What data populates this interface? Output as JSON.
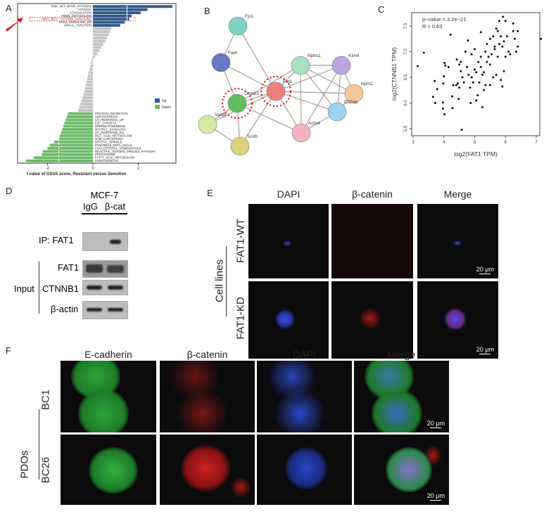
{
  "panels": {
    "a": "A",
    "b": "B",
    "c": "C",
    "d": "D",
    "e": "E",
    "f": "F"
  },
  "chart_data": [
    {
      "type": "bar",
      "orientation": "horizontal",
      "xlabel": "t value of GSVA score, Resistant versus Sensitive",
      "xticks": [
        "-2",
        "0",
        "2"
      ],
      "xlim": [
        -3.3,
        3.8
      ],
      "legend": {
        "position": "right",
        "entries": [
          {
            "name": "Up",
            "color": "#2f5a8a"
          },
          {
            "name": "Down",
            "color": "#6dbb6a"
          }
        ]
      },
      "up": {
        "labels": [
          "PI3K_AKT_MTOR_PATHWAY",
          "HYPOXIA",
          "COAGULATION",
          "HEME_METABOLISM",
          "WNT_BETA_CATENIN_SIGNALING",
          "KRAS_SIGNALING_DN",
          "APICAL_JUNCTION"
        ],
        "values": [
          3.5,
          2.4,
          2.1,
          1.7,
          1.6,
          1.4,
          1.2
        ],
        "highlighted": "WNT_BETA_CATENIN_SIGNALING"
      },
      "not_significant": {
        "values": [
          0.8,
          0.75,
          0.7,
          0.62,
          0.55,
          0.45,
          0.38,
          0.3,
          0.2,
          0.1,
          -0.05,
          -0.08,
          -0.12,
          -0.15,
          -0.2,
          -0.22,
          -0.25,
          -0.28,
          -0.32,
          -0.35,
          -0.38,
          -0.42,
          -0.45,
          -0.5,
          -0.55,
          -0.6,
          -0.65
        ]
      },
      "down": {
        "labels": [
          "PROTEIN_SECRETION",
          "ADIPOGENESIS",
          "UV_RESPONSE_UP",
          "E2F_TARGETS",
          "SPERMATOGENESIS",
          "MTORC1_SIGNALING",
          "UV_RESPONSE_DN",
          "BILE_ACID_METABOLISM",
          "G2M_CHECKPOINT",
          "MITOTIC_SPINDLE",
          "PANCREAS_BETA_CELLS",
          "CHOLESTEROL_HOMEOSTASIS",
          "REACTIVE_OXYGEN_SPECIES_PATHWAY",
          "PEROXISOME",
          "FATTY_ACID_METABOLISM",
          "ANGIOGENESIS"
        ],
        "values": [
          -1.1,
          -1.15,
          -1.2,
          -1.25,
          -1.3,
          -1.35,
          -1.4,
          -1.45,
          -1.5,
          -1.7,
          -1.9,
          -2.0,
          -2.2,
          -2.25,
          -2.6,
          -2.95
        ]
      }
    },
    {
      "type": "scatter",
      "xlabel": "log2(FAT1 TPM)",
      "ylabel": "log2(CTNNB1 TPM)",
      "annotation": [
        "p−value = 3.2e−21",
        "R = 0.63"
      ],
      "xlim": [
        3,
        7.2
      ],
      "ylim": [
        5.4,
        7.7
      ],
      "xticks": [
        "3",
        "4",
        "5",
        "6",
        "7"
      ],
      "yticks": [
        "5.5",
        "6.0",
        "6.5",
        "7.0",
        "7.5"
      ],
      "points": [
        [
          3.15,
          6.72
        ],
        [
          3.35,
          6.98
        ],
        [
          4.22,
          7.33
        ],
        [
          3.7,
          6.43
        ],
        [
          3.65,
          6.12
        ],
        [
          3.72,
          6.0
        ],
        [
          3.78,
          6.27
        ],
        [
          3.98,
          6.38
        ],
        [
          4.0,
          6.52
        ],
        [
          4.02,
          6.78
        ],
        [
          4.05,
          6.73
        ],
        [
          4.15,
          6.7
        ],
        [
          3.97,
          6.01
        ],
        [
          3.97,
          5.89
        ],
        [
          4.02,
          5.78
        ],
        [
          4.28,
          5.9
        ],
        [
          4.27,
          6.13
        ],
        [
          4.3,
          6.35
        ],
        [
          4.4,
          6.35
        ],
        [
          4.45,
          6.38
        ],
        [
          4.48,
          6.08
        ],
        [
          4.5,
          6.3
        ],
        [
          4.42,
          6.85
        ],
        [
          4.5,
          6.75
        ],
        [
          4.55,
          6.62
        ],
        [
          4.58,
          5.48
        ],
        [
          4.6,
          6.5
        ],
        [
          4.65,
          6.4
        ],
        [
          4.7,
          7.0
        ],
        [
          4.75,
          6.7
        ],
        [
          4.78,
          7.22
        ],
        [
          4.8,
          6.55
        ],
        [
          4.85,
          6.3
        ],
        [
          4.87,
          6.0
        ],
        [
          4.9,
          6.95
        ],
        [
          4.95,
          6.4
        ],
        [
          5.0,
          7.05
        ],
        [
          5.0,
          6.65
        ],
        [
          5.05,
          6.05
        ],
        [
          5.1,
          6.15
        ],
        [
          5.12,
          6.8
        ],
        [
          5.15,
          6.4
        ],
        [
          5.2,
          7.38
        ],
        [
          5.2,
          6.9
        ],
        [
          5.25,
          5.92
        ],
        [
          5.25,
          6.55
        ],
        [
          5.3,
          6.6
        ],
        [
          5.3,
          6.25
        ],
        [
          5.35,
          7.0
        ],
        [
          5.35,
          6.35
        ],
        [
          5.4,
          7.15
        ],
        [
          5.45,
          6.9
        ],
        [
          5.5,
          6.75
        ],
        [
          5.5,
          7.25
        ],
        [
          5.55,
          6.95
        ],
        [
          5.6,
          6.5
        ],
        [
          5.6,
          7.3
        ],
        [
          5.65,
          7.05
        ],
        [
          5.7,
          7.45
        ],
        [
          5.7,
          6.55
        ],
        [
          5.75,
          7.4
        ],
        [
          5.75,
          6.9
        ],
        [
          5.8,
          7.6
        ],
        [
          5.8,
          7.15
        ],
        [
          5.85,
          6.45
        ],
        [
          5.85,
          7.3
        ],
        [
          5.9,
          7.1
        ],
        [
          5.9,
          6.32
        ],
        [
          5.92,
          7.68
        ],
        [
          5.95,
          7.2
        ],
        [
          5.95,
          6.62
        ],
        [
          6.0,
          7.6
        ],
        [
          6.0,
          6.9
        ],
        [
          6.05,
          7.3
        ],
        [
          6.1,
          7.0
        ],
        [
          6.15,
          6.95
        ],
        [
          6.25,
          7.55
        ],
        [
          6.25,
          7.4
        ],
        [
          6.3,
          7.25
        ],
        [
          6.35,
          7.0
        ],
        [
          6.4,
          7.4
        ],
        [
          6.4,
          7.1
        ],
        [
          7.15,
          7.25
        ],
        [
          5.5,
          6.35
        ],
        [
          5.05,
          6.6
        ],
        [
          4.9,
          6.5
        ],
        [
          5.4,
          6.8
        ],
        [
          5.65,
          7.1
        ],
        [
          5.2,
          6.7
        ],
        [
          4.55,
          6.8
        ]
      ]
    }
  ],
  "network": {
    "nodes": [
      {
        "name": "Fjx1",
        "color": "#7ed3c0"
      },
      {
        "name": "Fat4",
        "color": "#6b78c4"
      },
      {
        "name": "Nphs1",
        "color": "#a9e0bf"
      },
      {
        "name": "Kirrel",
        "color": "#b9a6e3"
      },
      {
        "name": "Fat1",
        "color": "#ef7f7f"
      },
      {
        "name": "Nphs2",
        "color": "#f6c79a"
      },
      {
        "name": "Ctnnb1",
        "color": "#5fbf5f"
      },
      {
        "name": "Cd2ap",
        "color": "#9fd3f2"
      },
      {
        "name": "Vangl",
        "color": "#d3eaa6"
      },
      {
        "name": "Actn4",
        "color": "#f3b4be"
      },
      {
        "name": "Scrib",
        "color": "#d8d27a"
      }
    ],
    "highlighted": [
      "Fat1",
      "Ctnnb1"
    ]
  },
  "blot": {
    "cell_line": "MCF-7",
    "lanes": [
      "IgG",
      "β-cat"
    ],
    "ip_label": "IP: FAT1",
    "input_label": "Input",
    "rows": [
      "FAT1",
      "CTNNB1",
      "β-actin"
    ]
  },
  "if_cells": {
    "columns": [
      "DAPI",
      "β-catenin",
      "Merge"
    ],
    "group": "Cell lines",
    "rows": [
      "FAT1-WT",
      "FAT1-KD"
    ],
    "scale": "20 μm"
  },
  "if_pdo": {
    "columns": [
      "E-cadherin",
      "β-catenin",
      "DAPI",
      "Merge"
    ],
    "group": "PDOs",
    "rows": [
      "BC1",
      "BC26"
    ],
    "scale": "20 μm"
  }
}
